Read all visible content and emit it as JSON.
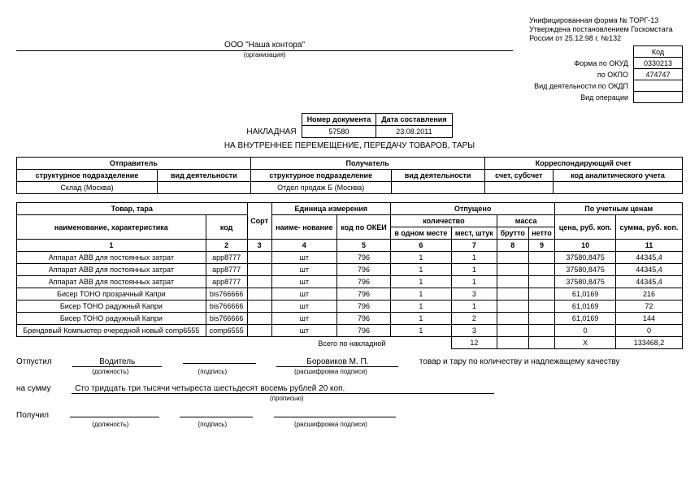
{
  "header": {
    "line1": "Унифицированная форма № ТОРГ-13",
    "line2": "Утверждена постановлением Госкомстата",
    "line3": "России от 25.12.98 г. №132",
    "codes": {
      "kod_label": "Код",
      "okud_label": "Форма по ОКУД",
      "okud": "0330213",
      "okpo_label": "по ОКПО",
      "okpo": "474747",
      "okdp_label": "Вид деятельности по ОКДП",
      "okdp": "",
      "oper_label": "Вид операции",
      "oper": ""
    },
    "org": "ООО \"Наша контора\"",
    "org_sub": "(организация)"
  },
  "docmeta": {
    "nakladnaya_word": "НАКЛАДНАЯ",
    "num_label": "Номер документа",
    "date_label": "Дата составления",
    "num": "57580",
    "date": "23.08.2011",
    "subtitle": "НА ВНУТРЕННЕЕ ПЕРЕМЕЩЕНИЕ, ПЕРЕДАЧУ ТОВАРОВ, ТАРЫ"
  },
  "parties": {
    "h_sender": "Отправитель",
    "h_receiver": "Получатель",
    "h_corr": "Корреспондирующий счет",
    "h_struct": "структурное подразделение",
    "h_act": "вид деятельности",
    "h_acct": "счет, субсчет",
    "h_anal": "код аналитического учета",
    "sender_unit": "Склад (Москва)",
    "sender_act": "",
    "recv_unit": "Отдел продаж Б (Москва)",
    "recv_act": "",
    "acct": "",
    "anal": ""
  },
  "cols": {
    "g_goods": "Товар, тара",
    "g_unit": "Единица измерения",
    "g_released": "Отпущено",
    "g_price": "По учетным ценам",
    "c1": "наименование, характеристика",
    "c2": "код",
    "c3": "Сорт",
    "c4": "наиме- нование",
    "c5": "код по ОКЕИ",
    "g_qty": "количество",
    "g_mass": "масса",
    "c6": "в одном месте",
    "c7": "мест, штук",
    "c8": "брутто",
    "c9": "нетто",
    "c10": "цена, руб. коп.",
    "c11": "сумма, руб. коп.",
    "n1": "1",
    "n2": "2",
    "n3": "3",
    "n4": "4",
    "n5": "5",
    "n6": "6",
    "n7": "7",
    "n8": "8",
    "n9": "9",
    "n10": "10",
    "n11": "11"
  },
  "rows": [
    {
      "name": "Аппарат АВВ для постоянных затрат",
      "code": "app8777",
      "sort": "",
      "un": "шт",
      "okei": "796",
      "inone": "1",
      "places": "1",
      "brutto": "",
      "netto": "",
      "price": "37580,8475",
      "sum": "44345,4"
    },
    {
      "name": "Аппарат АВВ для постоянных затрат",
      "code": "app8777",
      "sort": "",
      "un": "шт",
      "okei": "796",
      "inone": "1",
      "places": "1",
      "brutto": "",
      "netto": "",
      "price": "37580,8475",
      "sum": "44345,4"
    },
    {
      "name": "Аппарат АВВ для постоянных затрат",
      "code": "app8777",
      "sort": "",
      "un": "шт",
      "okei": "796",
      "inone": "1",
      "places": "1",
      "brutto": "",
      "netto": "",
      "price": "37580,8475",
      "sum": "44345,4"
    },
    {
      "name": "Бисер ТОНО прозрачный Капри",
      "code": "bis766666",
      "sort": "",
      "un": "шт",
      "okei": "796",
      "inone": "1",
      "places": "3",
      "brutto": "",
      "netto": "",
      "price": "61,0169",
      "sum": "216"
    },
    {
      "name": "Бисер ТОНО радужный Капри",
      "code": "bis766666",
      "sort": "",
      "un": "шт",
      "okei": "796",
      "inone": "1",
      "places": "1",
      "brutto": "",
      "netto": "",
      "price": "61,0169",
      "sum": "72"
    },
    {
      "name": "Бисер ТОНО радужный Капри",
      "code": "bis766666",
      "sort": "",
      "un": "шт",
      "okei": "796",
      "inone": "1",
      "places": "2",
      "brutto": "",
      "netto": "",
      "price": "61,0169",
      "sum": "144"
    },
    {
      "name": "Брендовый Компьютер очередной новый comp6555",
      "code": "comp6555",
      "sort": "",
      "un": "шт",
      "okei": "796",
      "inone": "1",
      "places": "3",
      "brutto": "",
      "netto": "",
      "price": "0",
      "sum": "0"
    }
  ],
  "totals": {
    "label": "Всего по накладной",
    "places": "12",
    "brutto": "",
    "netto": "",
    "price": "Х",
    "sum": "133468,2"
  },
  "signatures": {
    "released_label": "Отпустил",
    "position": "Водитель",
    "pos_sub": "(должность)",
    "sign_sub": "(подпись)",
    "name": "Боровиков М. П.",
    "name_sub": "(расшифровка подписи)",
    "tail": "товар и тару по количеству и надлежащему качеству",
    "sum_label": "на сумму",
    "sum_words": "Сто тридцать три тысячи четыреста шестьдесят восемь  рублей  20 коп.",
    "sum_sub": "(прописью)",
    "received_label": "Получил"
  }
}
